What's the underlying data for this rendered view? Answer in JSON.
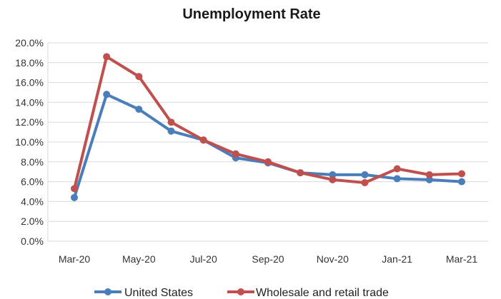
{
  "chart_data": {
    "type": "line",
    "title": "Unemployment Rate",
    "xlabel": "",
    "ylabel": "",
    "categories": [
      "Mar-20",
      "Apr-20",
      "May-20",
      "Jun-20",
      "Jul-20",
      "Aug-20",
      "Sep-20",
      "Oct-20",
      "Nov-20",
      "Dec-20",
      "Jan-21",
      "Feb-21",
      "Mar-21"
    ],
    "x_tick_labels": [
      "Mar-20",
      "May-20",
      "Jul-20",
      "Sep-20",
      "Nov-20",
      "Jan-21",
      "Mar-21"
    ],
    "y_ticks": [
      0,
      2,
      4,
      6,
      8,
      10,
      12,
      14,
      16,
      18,
      20
    ],
    "y_tick_labels": [
      "0.0%",
      "2.0%",
      "4.0%",
      "6.0%",
      "8.0%",
      "10.0%",
      "12.0%",
      "14.0%",
      "16.0%",
      "18.0%",
      "20.0%"
    ],
    "ylim": [
      0,
      20
    ],
    "grid": true,
    "legend_position": "bottom",
    "series": [
      {
        "name": "United States",
        "color": "#4a7ebb",
        "values": [
          4.4,
          14.8,
          13.3,
          11.1,
          10.2,
          8.4,
          7.9,
          6.9,
          6.7,
          6.7,
          6.3,
          6.2,
          6.0
        ]
      },
      {
        "name": "Wholesale and retail trade",
        "color": "#c0504d",
        "values": [
          5.3,
          18.6,
          16.6,
          12.0,
          10.2,
          8.8,
          8.0,
          6.9,
          6.2,
          5.9,
          7.3,
          6.7,
          6.8
        ]
      }
    ]
  }
}
